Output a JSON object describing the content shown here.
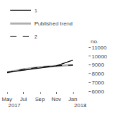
{
  "chart_data": {
    "type": "line",
    "y_label": "no.",
    "categories": [
      "May",
      "Jul",
      "Sep",
      "Nov",
      "Jan"
    ],
    "series": [
      {
        "name": "1",
        "color": "#000000",
        "line_style": "solid",
        "values": [
          8150,
          8400,
          8700,
          8900,
          9550
        ]
      },
      {
        "name": "Published trend",
        "color": "#b0b0b0",
        "line_style": "solid",
        "values": [
          8150,
          8500,
          8750,
          8900,
          9000
        ]
      },
      {
        "name": "2",
        "color": "#000000",
        "line_style": "dashed",
        "values": [
          8150,
          8500,
          8750,
          8900,
          8980
        ]
      }
    ],
    "annotations": [
      {
        "text": "2017",
        "category": "May"
      },
      {
        "text": "2018",
        "category": "Jan"
      }
    ],
    "ylim": [
      6000,
      11000
    ],
    "yticks": [
      6000,
      7000,
      8000,
      9000,
      10000,
      11000
    ],
    "grid": false,
    "legend": "upper left"
  }
}
